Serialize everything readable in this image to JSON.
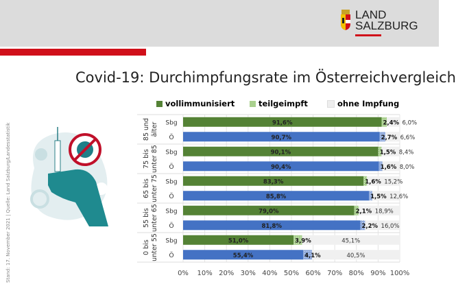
{
  "header": {
    "logo_line1": "LAND",
    "logo_line2": "SALZBURG"
  },
  "title": "Covid-19: Durchimpfungsrate im Österreichvergleich",
  "source_note": "Stand: 17. November 2021 | Quelle: Land Salzburg/Landesstatistik",
  "colors": {
    "red": "#d0101a",
    "sbg": "#548235",
    "oe": "#4472c4",
    "sbg_partial": "#a9d08e",
    "oe_partial": "#8faadc",
    "none": "#f0f0f0"
  },
  "chart_data": {
    "type": "bar",
    "orientation": "horizontal",
    "stacked": "100%",
    "legend": [
      "vollimmunisiert",
      "teilgeimpft",
      "ohne Impfung"
    ],
    "legend_position": "top",
    "groups": [
      {
        "label": [
          "85 und",
          "älter"
        ],
        "rows": [
          {
            "label": "Sbg",
            "values": [
              91.6,
              2.4,
              6.0
            ],
            "labels": [
              "91,6%",
              "2,4%",
              "6,0%"
            ]
          },
          {
            "label": "Ö",
            "values": [
              90.7,
              2.7,
              6.6
            ],
            "labels": [
              "90,7%",
              "2,7%",
              "6,6%"
            ]
          }
        ]
      },
      {
        "label": [
          "75 bis",
          "unter 85"
        ],
        "rows": [
          {
            "label": "Sbg",
            "values": [
              90.1,
              1.5,
              8.4
            ],
            "labels": [
              "90,1%",
              "1,5%",
              "8,4%"
            ]
          },
          {
            "label": "Ö",
            "values": [
              90.4,
              1.6,
              8.0
            ],
            "labels": [
              "90,4%",
              "1,6%",
              "8,0%"
            ]
          }
        ]
      },
      {
        "label": [
          "65 bis",
          "unter 75"
        ],
        "rows": [
          {
            "label": "Sbg",
            "values": [
              83.3,
              1.6,
              15.2
            ],
            "labels": [
              "83,3%",
              "1,6%",
              "15,2%"
            ]
          },
          {
            "label": "Ö",
            "values": [
              85.8,
              1.5,
              12.6
            ],
            "labels": [
              "85,8%",
              "1,5%",
              "12,6%"
            ]
          }
        ]
      },
      {
        "label": [
          "55 bis",
          "unter 65"
        ],
        "rows": [
          {
            "label": "Sbg",
            "values": [
              79.0,
              2.1,
              18.9
            ],
            "labels": [
              "79,0%",
              "2,1%",
              "18,9%"
            ]
          },
          {
            "label": "Ö",
            "values": [
              81.8,
              2.2,
              16.0
            ],
            "labels": [
              "81,8%",
              "2,2%",
              "16,0%"
            ]
          }
        ]
      },
      {
        "label": [
          "0 bis",
          "unter 55"
        ],
        "rows": [
          {
            "label": "Sbg",
            "values": [
              51.0,
              3.9,
              45.1
            ],
            "labels": [
              "51,0%",
              "3,9%",
              "45,1%"
            ]
          },
          {
            "label": "Ö",
            "values": [
              55.4,
              4.1,
              40.5
            ],
            "labels": [
              "55,4%",
              "4,1%",
              "40,5%"
            ]
          }
        ]
      }
    ],
    "x_ticks": [
      "0%",
      "10%",
      "20%",
      "30%",
      "40%",
      "50%",
      "60%",
      "70%",
      "80%",
      "90%",
      "100%"
    ],
    "xlim": [
      0,
      100
    ],
    "grid": true
  }
}
